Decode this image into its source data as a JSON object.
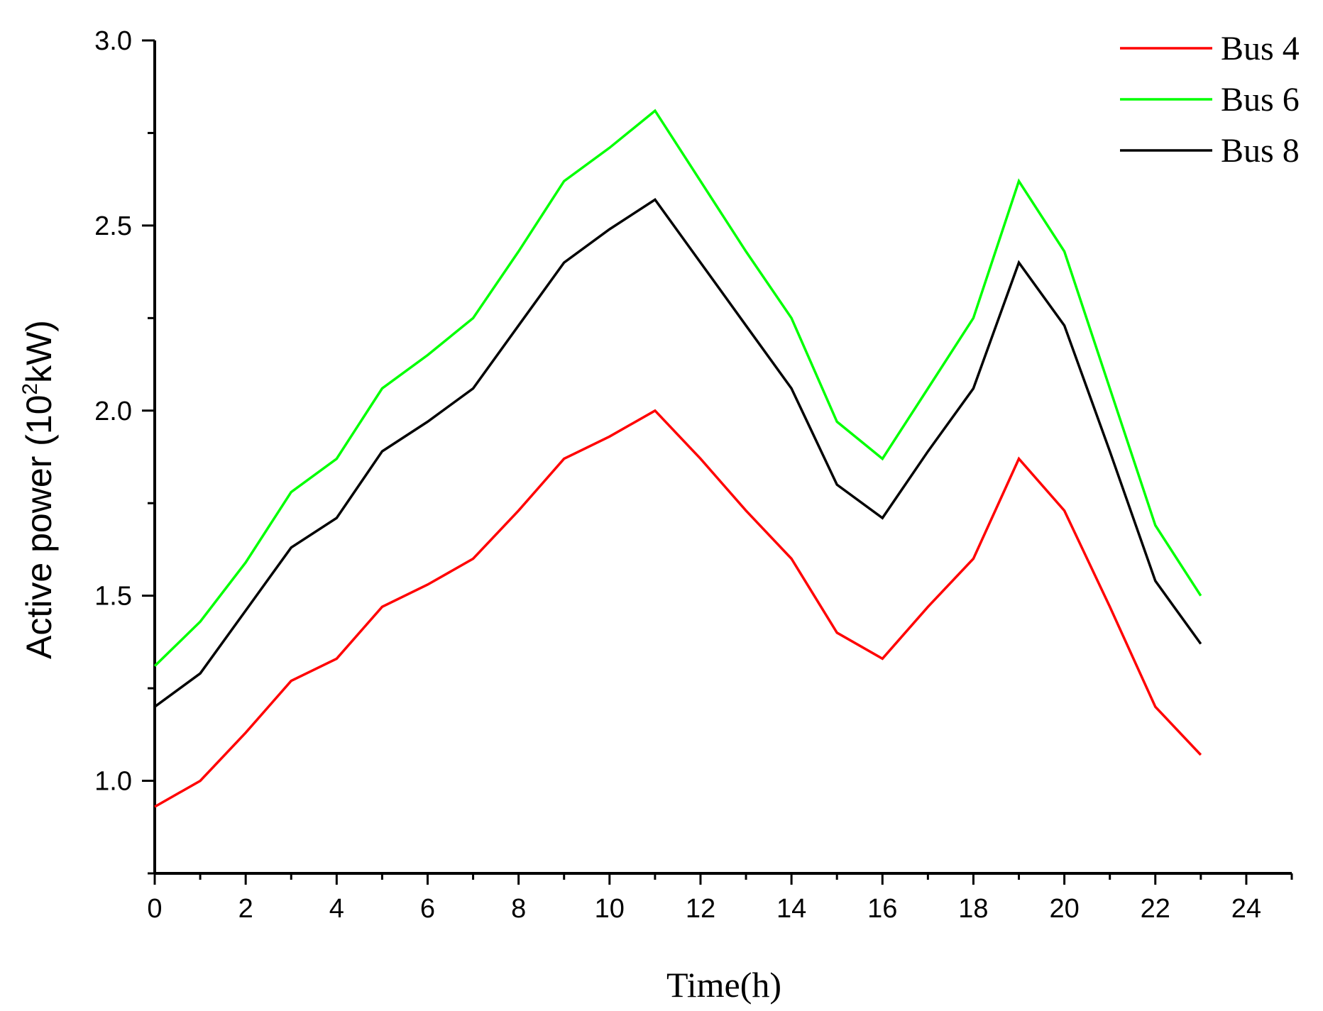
{
  "chart_data": {
    "type": "line",
    "title": "",
    "xlabel": "Time(h)",
    "ylabel": {
      "prefix": "Active power (10",
      "superscript": "2",
      "suffix": "kW)"
    },
    "xlim": [
      0,
      25
    ],
    "ylim": [
      0.75,
      3.0
    ],
    "x_ticks": [
      0,
      2,
      4,
      6,
      8,
      10,
      12,
      14,
      16,
      18,
      20,
      22,
      24
    ],
    "x_tick_labels": [
      "0",
      "2",
      "4",
      "6",
      "8",
      "10",
      "12",
      "14",
      "16",
      "18",
      "20",
      "22",
      "24"
    ],
    "x_minor_step": 1,
    "y_ticks": [
      1.0,
      1.5,
      2.0,
      2.5,
      3.0
    ],
    "y_tick_labels": [
      "1.0",
      "1.5",
      "2.0",
      "2.5",
      "3.0"
    ],
    "y_minor_step": 0.25,
    "grid": false,
    "legend_position": "top-right",
    "x": [
      0,
      1,
      2,
      3,
      4,
      5,
      6,
      7,
      8,
      9,
      10,
      11,
      12,
      13,
      14,
      15,
      16,
      17,
      18,
      19,
      20,
      21,
      22,
      23
    ],
    "series": [
      {
        "name": "Bus 4",
        "color": "#ff0000",
        "values": [
          0.93,
          1.0,
          1.13,
          1.27,
          1.33,
          1.47,
          1.53,
          1.6,
          1.73,
          1.87,
          1.93,
          2.0,
          1.87,
          1.73,
          1.6,
          1.4,
          1.33,
          1.47,
          1.6,
          1.87,
          1.73,
          1.47,
          1.2,
          1.07
        ]
      },
      {
        "name": "Bus 6",
        "color": "#00ff00",
        "values": [
          1.31,
          1.43,
          1.59,
          1.78,
          1.87,
          2.06,
          2.15,
          2.25,
          2.43,
          2.62,
          2.71,
          2.81,
          2.62,
          2.43,
          2.25,
          1.97,
          1.87,
          2.06,
          2.25,
          2.62,
          2.43,
          2.06,
          1.69,
          1.5
        ]
      },
      {
        "name": "Bus 8",
        "color": "#000000",
        "values": [
          1.2,
          1.29,
          1.46,
          1.63,
          1.71,
          1.89,
          1.97,
          2.06,
          2.23,
          2.4,
          2.49,
          2.57,
          2.4,
          2.23,
          2.06,
          1.8,
          1.71,
          1.89,
          2.06,
          2.4,
          2.23,
          1.89,
          1.54,
          1.37
        ]
      }
    ]
  }
}
